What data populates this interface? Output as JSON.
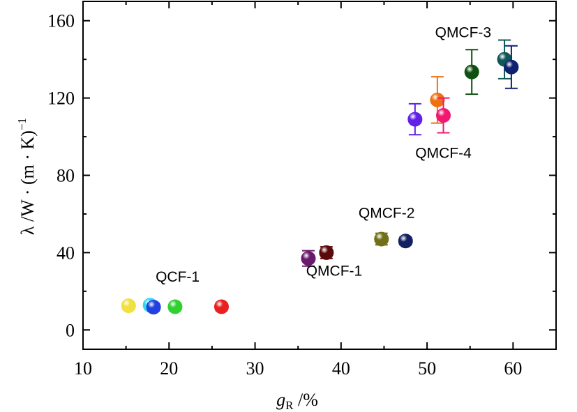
{
  "chart_data": {
    "type": "scatter",
    "title": "",
    "xlabel": {
      "main": "g",
      "sub": "R",
      "rest": " /%"
    },
    "ylabel": {
      "main": "λ /W · (m · K)",
      "sup": "−1"
    },
    "xlim": [
      10,
      65
    ],
    "ylim": [
      -10,
      170
    ],
    "xticks": [
      10,
      20,
      30,
      40,
      50,
      60
    ],
    "yticks": [
      0,
      40,
      80,
      120,
      160
    ],
    "grid": false,
    "error_bars": true,
    "points": [
      {
        "x": 15.3,
        "y": 12.5,
        "err": 2,
        "color": "#f0e040"
      },
      {
        "x": 17.8,
        "y": 12.8,
        "err": 2,
        "color": "#30d8f0"
      },
      {
        "x": 18.2,
        "y": 11.8,
        "err": 2,
        "color": "#2040e0"
      },
      {
        "x": 20.7,
        "y": 12.0,
        "err": 2,
        "color": "#30d030"
      },
      {
        "x": 26.1,
        "y": 12.0,
        "err": 2,
        "color": "#e82020"
      },
      {
        "x": 36.2,
        "y": 37.0,
        "err": 4,
        "color": "#6a1a6a"
      },
      {
        "x": 38.3,
        "y": 40.0,
        "err": 3,
        "color": "#5a0a0a"
      },
      {
        "x": 44.7,
        "y": 47.0,
        "err": 3,
        "color": "#707018"
      },
      {
        "x": 47.5,
        "y": 46.0,
        "err": 2,
        "color": "#102060"
      },
      {
        "x": 48.6,
        "y": 109.0,
        "err": 8,
        "color": "#6020e8"
      },
      {
        "x": 51.2,
        "y": 119.0,
        "err": 12,
        "color": "#f07010"
      },
      {
        "x": 51.9,
        "y": 111.0,
        "err": 9,
        "color": "#f01870"
      },
      {
        "x": 55.2,
        "y": 133.5,
        "err": 11.5,
        "color": "#105010"
      },
      {
        "x": 59.0,
        "y": 140.0,
        "err": 10,
        "color": "#105858"
      },
      {
        "x": 59.8,
        "y": 136.0,
        "err": 11,
        "color": "#102070"
      }
    ],
    "annotations": [
      {
        "text": "QCF-1",
        "x": 21,
        "y": 25
      },
      {
        "text": "QMCF-1",
        "x": 39.2,
        "y": 28
      },
      {
        "text": "QMCF-2",
        "x": 45.3,
        "y": 58
      },
      {
        "text": "QMCF-3",
        "x": 54.2,
        "y": 151.5
      },
      {
        "text": "QMCF-4",
        "x": 51.9,
        "y": 89
      }
    ]
  }
}
